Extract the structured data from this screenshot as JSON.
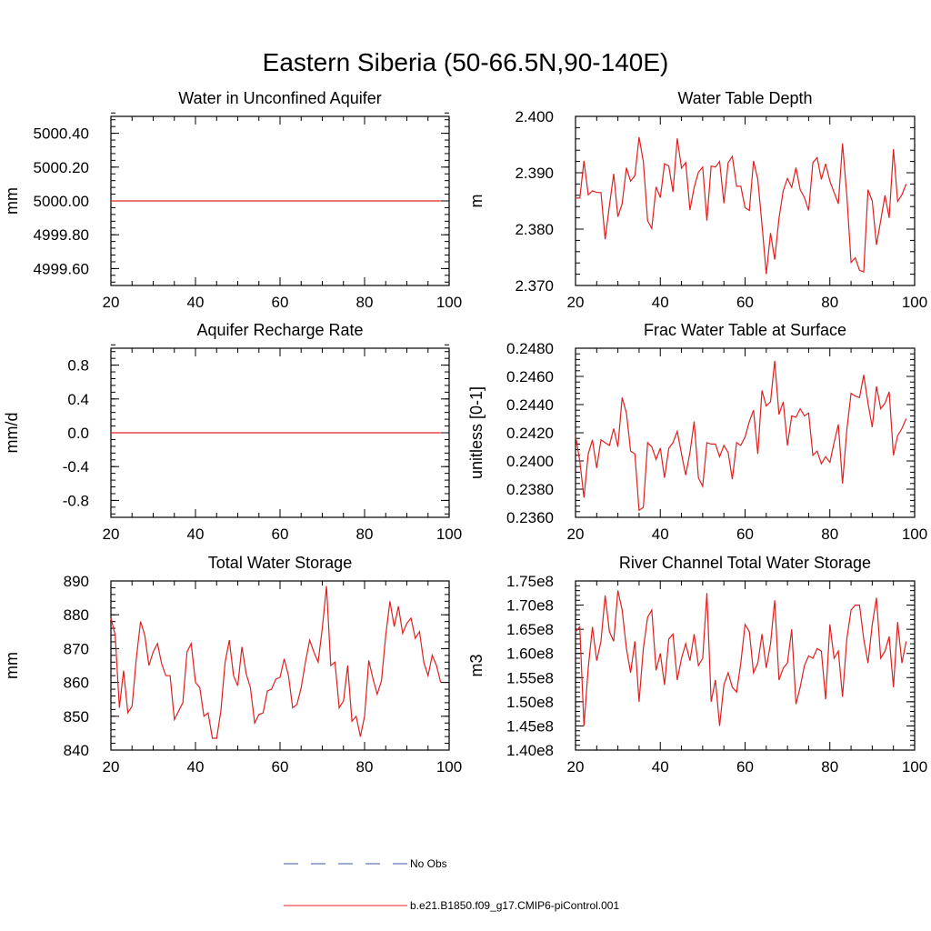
{
  "figure": {
    "title": "Eastern Siberia (50-66.5N,90-140E)"
  },
  "legend": {
    "placement": "bottom-center",
    "entries": [
      {
        "label": "No Obs",
        "color": "#3a5aa8",
        "style": "dashed"
      },
      {
        "label": "b.e21.B1850.f09_g17.CMIP6-piControl.001",
        "color": "#e02020",
        "style": "solid"
      }
    ]
  },
  "chart_data": [
    {
      "type": "line",
      "title": "Water in Unconfined Aquifer",
      "ylabel": "mm",
      "xlim": [
        20,
        100
      ],
      "ylim": [
        4999.5,
        5000.5
      ],
      "xticks": [
        20,
        40,
        60,
        80,
        100
      ],
      "xtick_labels": [
        "20",
        "40",
        "60",
        "80",
        "100"
      ],
      "yticks": [
        4999.6,
        4999.8,
        5000.0,
        5000.2,
        5000.4
      ],
      "ytick_labels": [
        "4999.60",
        "4999.80",
        "5000.00",
        "5000.20",
        "5000.40"
      ],
      "series": [
        {
          "color": "#e02020",
          "x": [
            20,
            98
          ],
          "y": [
            5000.0,
            5000.0
          ]
        }
      ]
    },
    {
      "type": "line",
      "title": "Water Table Depth",
      "ylabel": "m",
      "xlim": [
        20,
        100
      ],
      "ylim": [
        2.37,
        2.4
      ],
      "xticks": [
        20,
        40,
        60,
        80,
        100
      ],
      "xtick_labels": [
        "20",
        "40",
        "60",
        "80",
        "100"
      ],
      "yticks": [
        2.37,
        2.38,
        2.39,
        2.4
      ],
      "ytick_labels": [
        "2.370",
        "2.380",
        "2.390",
        "2.400"
      ],
      "series": [
        {
          "color": "#e02020",
          "x0": 20,
          "y": [
            2.3855,
            2.3855,
            2.3921,
            2.3861,
            2.3868,
            2.3865,
            2.3865,
            2.3782,
            2.3842,
            2.3898,
            2.3822,
            2.3845,
            2.3909,
            2.3885,
            2.3895,
            2.3963,
            2.392,
            2.3815,
            2.3801,
            2.3875,
            2.3856,
            2.3916,
            2.3912,
            2.3866,
            2.3961,
            2.3908,
            2.3918,
            2.3834,
            2.3874,
            2.3901,
            2.391,
            2.3815,
            2.3912,
            2.391,
            2.392,
            2.3846,
            2.3918,
            2.3929,
            2.3876,
            2.3876,
            2.3838,
            2.3833,
            2.3921,
            2.3888,
            2.3808,
            2.372,
            2.3793,
            2.3746,
            2.3819,
            2.3868,
            2.389,
            2.3874,
            2.3909,
            2.387,
            2.3856,
            2.3833,
            2.3918,
            2.3927,
            2.3888,
            2.3916,
            2.3885,
            2.3865,
            2.3845,
            2.3952,
            2.386,
            2.3741,
            2.3749,
            2.3727,
            2.3724,
            2.387,
            2.385,
            2.3772,
            2.3815,
            2.386,
            2.382,
            2.3942,
            2.3849,
            2.3861,
            2.388
          ]
        }
      ]
    },
    {
      "type": "line",
      "title": "Aquifer Recharge Rate",
      "ylabel": "mm/d",
      "xlim": [
        20,
        100
      ],
      "ylim": [
        -1.0,
        1.0
      ],
      "xticks": [
        20,
        40,
        60,
        80,
        100
      ],
      "xtick_labels": [
        "20",
        "40",
        "60",
        "80",
        "100"
      ],
      "yticks": [
        -0.8,
        -0.4,
        0.0,
        0.4,
        0.8
      ],
      "ytick_labels": [
        "-0.8",
        "-0.4",
        "0.0",
        "0.4",
        "0.8"
      ],
      "series": [
        {
          "color": "#e02020",
          "x": [
            20,
            98
          ],
          "y": [
            0.0,
            0.0
          ]
        }
      ]
    },
    {
      "type": "line",
      "title": "Frac Water Table at Surface",
      "ylabel": "unitless [0-1]",
      "xlim": [
        20,
        100
      ],
      "ylim": [
        0.236,
        0.248
      ],
      "xticks": [
        20,
        40,
        60,
        80,
        100
      ],
      "xtick_labels": [
        "20",
        "40",
        "60",
        "80",
        "100"
      ],
      "yticks": [
        0.236,
        0.238,
        0.24,
        0.242,
        0.244,
        0.246,
        0.248
      ],
      "ytick_labels": [
        "0.2360",
        "0.2380",
        "0.2400",
        "0.2420",
        "0.2440",
        "0.2460",
        "0.2480"
      ],
      "series": [
        {
          "color": "#e02020",
          "x0": 20,
          "y": [
            0.2418,
            0.24,
            0.2374,
            0.2405,
            0.2415,
            0.2395,
            0.2415,
            0.2413,
            0.2411,
            0.2423,
            0.241,
            0.2445,
            0.2434,
            0.2407,
            0.2405,
            0.2365,
            0.2367,
            0.2413,
            0.241,
            0.2401,
            0.2409,
            0.2388,
            0.2409,
            0.2413,
            0.2421,
            0.2405,
            0.239,
            0.2406,
            0.2428,
            0.2388,
            0.2382,
            0.2413,
            0.2412,
            0.2412,
            0.2403,
            0.2411,
            0.2406,
            0.2387,
            0.2413,
            0.2411,
            0.2417,
            0.2428,
            0.2436,
            0.2405,
            0.245,
            0.2439,
            0.2442,
            0.2471,
            0.2433,
            0.2442,
            0.2411,
            0.2432,
            0.2431,
            0.2437,
            0.2432,
            0.2434,
            0.2404,
            0.2407,
            0.2398,
            0.2403,
            0.2399,
            0.2413,
            0.2426,
            0.2384,
            0.2422,
            0.2448,
            0.2446,
            0.2445,
            0.2461,
            0.2441,
            0.2424,
            0.2453,
            0.2437,
            0.2441,
            0.2449,
            0.2404,
            0.2418,
            0.2423,
            0.243
          ]
        }
      ]
    },
    {
      "type": "line",
      "title": "Total Water Storage",
      "ylabel": "mm",
      "xlim": [
        20,
        100
      ],
      "ylim": [
        840,
        890
      ],
      "xticks": [
        20,
        40,
        60,
        80,
        100
      ],
      "xtick_labels": [
        "20",
        "40",
        "60",
        "80",
        "100"
      ],
      "yticks": [
        840,
        850,
        860,
        870,
        880,
        890
      ],
      "ytick_labels": [
        "840",
        "850",
        "860",
        "870",
        "880",
        "890"
      ],
      "series": [
        {
          "color": "#e02020",
          "x0": 20,
          "y": [
            879.0,
            874.0,
            852.5,
            863.5,
            851.0,
            853.0,
            867.0,
            878.0,
            874.0,
            865.0,
            869.0,
            871.5,
            865.5,
            862.0,
            862.0,
            849.0,
            851.5,
            854.0,
            869.0,
            871.5,
            860.0,
            858.5,
            850.0,
            851.0,
            843.5,
            843.5,
            851.5,
            866.0,
            872.5,
            862.0,
            859.0,
            870.5,
            862.5,
            858.5,
            848.0,
            850.5,
            851.0,
            857.5,
            858.0,
            861.0,
            861.5,
            867.0,
            862.0,
            852.5,
            853.5,
            858.5,
            866.0,
            872.5,
            869.0,
            866.0,
            876.0,
            888.5,
            865.0,
            866.0,
            852.5,
            854.5,
            865.0,
            848.5,
            850.0,
            844.0,
            850.0,
            866.5,
            861.0,
            856.5,
            860.5,
            874.0,
            884.0,
            876.5,
            882.5,
            874.5,
            877.5,
            879.0,
            873.0,
            875.0,
            866.0,
            862.0,
            868.0,
            865.0,
            860.0
          ]
        }
      ]
    },
    {
      "type": "line",
      "title": "River Channel Total Water Storage",
      "ylabel": "m3",
      "xlim": [
        20,
        100
      ],
      "ylim": [
        140000000.0,
        175000000.0
      ],
      "xticks": [
        20,
        40,
        60,
        80,
        100
      ],
      "xtick_labels": [
        "20",
        "40",
        "60",
        "80",
        "100"
      ],
      "yticks": [
        140000000.0,
        145000000.0,
        150000000.0,
        155000000.0,
        160000000.0,
        165000000.0,
        170000000.0,
        175000000.0
      ],
      "ytick_labels": [
        "1.40e8",
        "1.45e8",
        "1.50e8",
        "1.55e8",
        "1.60e8",
        "1.65e8",
        "1.70e8",
        "1.75e8"
      ],
      "series": [
        {
          "color": "#e02020",
          "x0": 20,
          "y": [
            164500000.0,
            165500000.0,
            145000000.0,
            157000000.0,
            165500000.0,
            158500000.0,
            162500000.0,
            172000000.0,
            164500000.0,
            162500000.0,
            173000000.0,
            169000000.0,
            161000000.0,
            156000000.0,
            162500000.0,
            150000000.0,
            161000000.0,
            167500000.0,
            169000000.0,
            156500000.0,
            160000000.0,
            153500000.0,
            163000000.0,
            164000000.0,
            154500000.0,
            159000000.0,
            162000000.0,
            158500000.0,
            164000000.0,
            157500000.0,
            159000000.0,
            172500000.0,
            150000000.0,
            154500000.0,
            145000000.0,
            153500000.0,
            156000000.0,
            153000000.0,
            152000000.0,
            158000000.0,
            166000000.0,
            164500000.0,
            156000000.0,
            158000000.0,
            164000000.0,
            157000000.0,
            162000000.0,
            171000000.0,
            154500000.0,
            157000000.0,
            158000000.0,
            165000000.0,
            149500000.0,
            153000000.0,
            157500000.0,
            159500000.0,
            159000000.0,
            161000000.0,
            160500000.0,
            150500000.0,
            166000000.0,
            159000000.0,
            160500000.0,
            151000000.0,
            163000000.0,
            169000000.0,
            170000000.0,
            170000000.0,
            163000000.0,
            158000000.0,
            166000000.0,
            171500000.0,
            159000000.0,
            160500000.0,
            163500000.0,
            153000000.0,
            166500000.0,
            158000000.0,
            162500000.0
          ]
        }
      ]
    }
  ]
}
